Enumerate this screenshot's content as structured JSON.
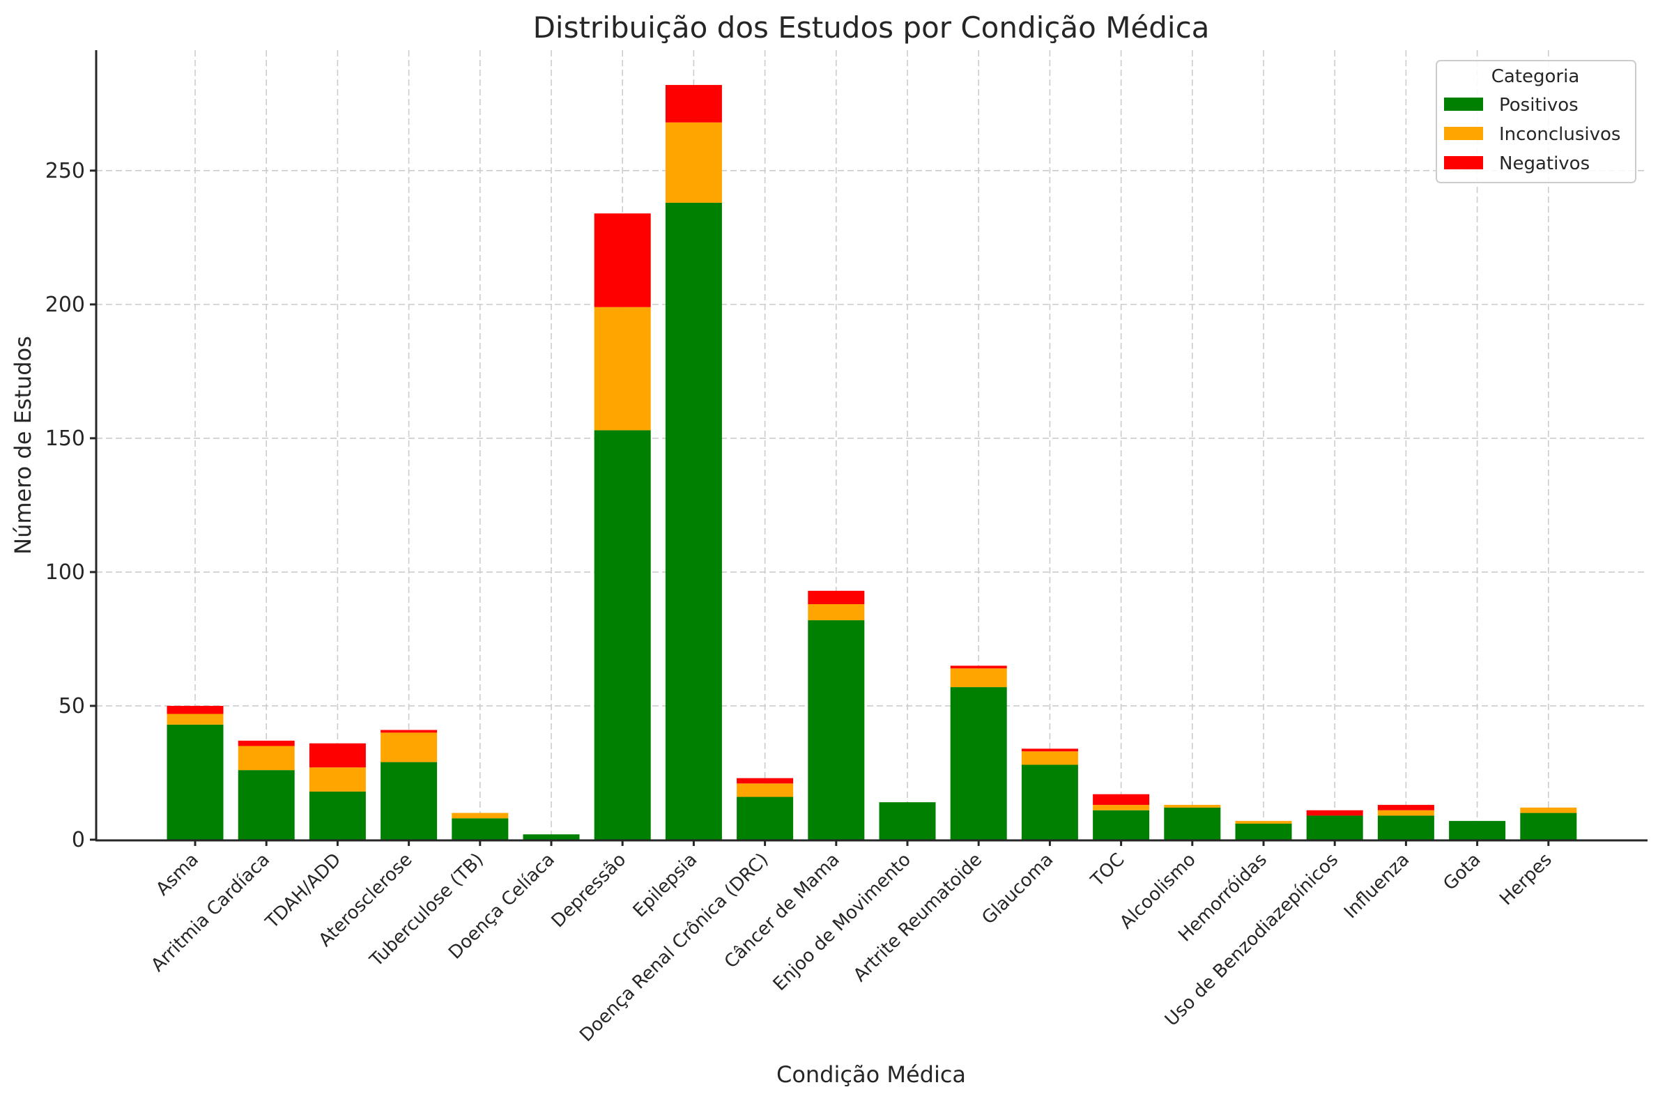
{
  "chart_data": {
    "type": "bar",
    "stacked": true,
    "title": "Distribuição dos Estudos por Condição Médica",
    "xlabel": "Condição Médica",
    "ylabel": "Número de Estudos",
    "ylim": [
      0,
      295
    ],
    "yticks": [
      0,
      50,
      100,
      150,
      200,
      250
    ],
    "grid": true,
    "legend": {
      "title": "Categoria",
      "placement": "top-right"
    },
    "categories": [
      "Asma",
      "Arritmia Cardíaca",
      "TDAH/ADD",
      "Aterosclerose",
      "Tuberculose (TB)",
      "Doença Celíaca",
      "Depressão",
      "Epilepsia",
      "Doença Renal Crônica (DRC)",
      "Câncer de Mama",
      "Enjoo de Movimento",
      "Artrite Reumatoide",
      "Glaucoma",
      "TOC",
      "Alcoolismo",
      "Hemorróidas",
      "Uso de Benzodiazepínicos",
      "Influenza",
      "Gota",
      "Herpes"
    ],
    "series": [
      {
        "name": "Positivos",
        "color": "#008000",
        "values": [
          43,
          26,
          18,
          29,
          8,
          2,
          153,
          238,
          16,
          82,
          14,
          57,
          28,
          11,
          12,
          6,
          9,
          9,
          7,
          10
        ]
      },
      {
        "name": "Inconclusivos",
        "color": "#FFA500",
        "values": [
          4,
          9,
          9,
          11,
          2,
          0,
          46,
          30,
          5,
          6,
          0,
          7,
          5,
          2,
          1,
          1,
          0,
          2,
          0,
          2
        ]
      },
      {
        "name": "Negativos",
        "color": "#FF0000",
        "values": [
          3,
          2,
          9,
          1,
          0,
          0,
          35,
          14,
          2,
          5,
          0,
          1,
          1,
          4,
          0,
          0,
          2,
          2,
          0,
          0
        ]
      }
    ]
  }
}
